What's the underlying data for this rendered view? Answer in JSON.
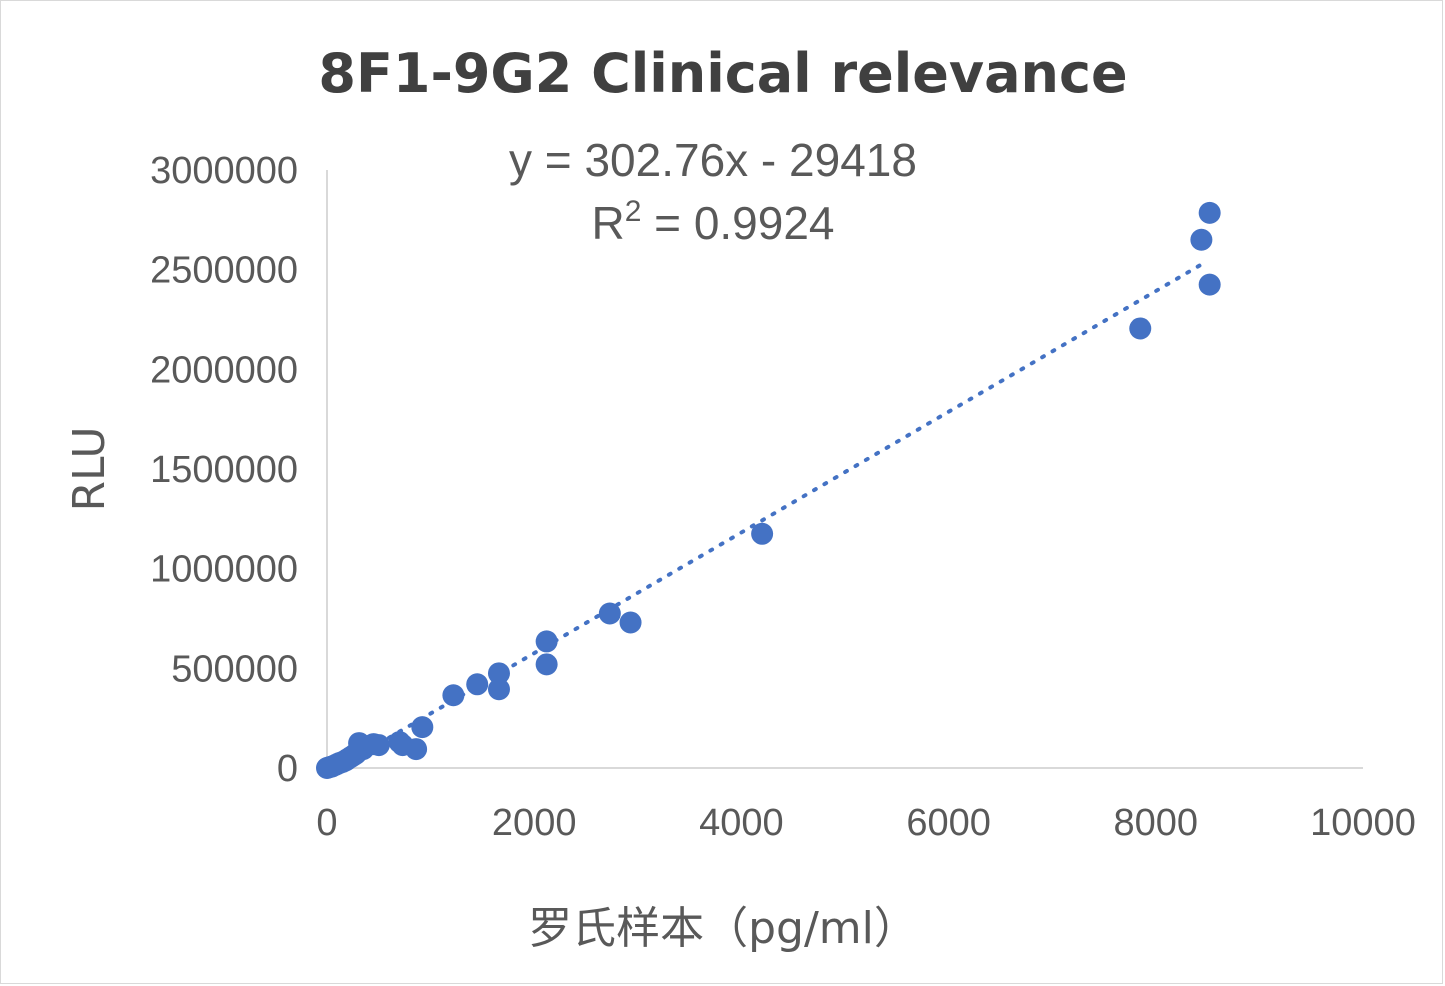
{
  "chart_data": {
    "type": "scatter",
    "title": "8F1-9G2 Clinical relevance",
    "xlabel": "罗氏样本（pg/ml）",
    "ylabel": "RLU",
    "xlim": [
      0,
      10000
    ],
    "ylim": [
      0,
      3000000
    ],
    "x_ticks": [
      "0",
      "2000",
      "4000",
      "6000",
      "8000",
      "10000"
    ],
    "y_ticks": [
      "0",
      "500000",
      "1000000",
      "1500000",
      "2000000",
      "2500000",
      "3000000"
    ],
    "grid": false,
    "legend": "none",
    "marker_color": "#4472C4",
    "trendline": {
      "type": "linear",
      "style": "dotted",
      "color": "#4472C4",
      "slope": 302.76,
      "intercept": -29418,
      "x_range": [
        0,
        8450
      ],
      "equation": "y = 302.76x - 29418",
      "r_squared_label": "R",
      "r_squared_sup": "2",
      "r_squared_value": " = 0.9924"
    },
    "series": [
      {
        "points": [
          [
            0,
            0
          ],
          [
            10,
            2000
          ],
          [
            30,
            5000
          ],
          [
            50,
            8000
          ],
          [
            80,
            15000
          ],
          [
            100,
            20000
          ],
          [
            120,
            25000
          ],
          [
            150,
            30000
          ],
          [
            180,
            38000
          ],
          [
            200,
            45000
          ],
          [
            230,
            55000
          ],
          [
            260,
            65000
          ],
          [
            280,
            72000
          ],
          [
            300,
            85000
          ],
          [
            310,
            125000
          ],
          [
            350,
            95000
          ],
          [
            380,
            110000
          ],
          [
            450,
            120000
          ],
          [
            500,
            115000
          ],
          [
            700,
            130000
          ],
          [
            730,
            115000
          ],
          [
            860,
            95000
          ],
          [
            920,
            205000
          ],
          [
            1220,
            365000
          ],
          [
            1450,
            420000
          ],
          [
            1660,
            475000
          ],
          [
            1660,
            395000
          ],
          [
            2120,
            635000
          ],
          [
            2120,
            520000
          ],
          [
            2730,
            775000
          ],
          [
            2930,
            730000
          ],
          [
            4200,
            1175000
          ],
          [
            7850,
            2205000
          ],
          [
            8440,
            2650000
          ],
          [
            8520,
            2785000
          ],
          [
            8520,
            2425000
          ]
        ]
      }
    ]
  }
}
